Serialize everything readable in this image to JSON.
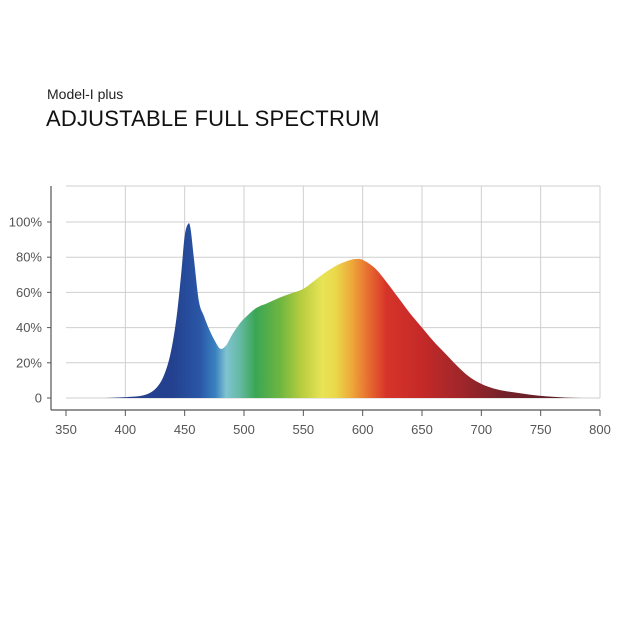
{
  "header": {
    "subtitle": "Model-I plus",
    "title": "ADJUSTABLE FULL SPECTRUM"
  },
  "chart_data": {
    "type": "area",
    "title": "ADJUSTABLE FULL SPECTRUM",
    "subtitle": "Model-I plus",
    "xlabel": "",
    "ylabel": "",
    "xlim": [
      350,
      800
    ],
    "ylim": [
      0,
      120
    ],
    "grid": true,
    "x_ticks": [
      350,
      400,
      450,
      500,
      550,
      600,
      650,
      700,
      750,
      800
    ],
    "y_ticks": [
      {
        "value": 0,
        "label": "0"
      },
      {
        "value": 20,
        "label": "20%"
      },
      {
        "value": 40,
        "label": "40%"
      },
      {
        "value": 60,
        "label": "60%"
      },
      {
        "value": 80,
        "label": "80%"
      },
      {
        "value": 100,
        "label": "100%"
      }
    ],
    "series": [
      {
        "x": [
          350,
          380,
          400,
          415,
          425,
          432,
          438,
          443,
          447,
          450,
          453,
          455,
          458,
          462,
          466,
          470,
          475,
          480,
          485,
          490,
          495,
          500,
          510,
          520,
          530,
          540,
          550,
          560,
          570,
          580,
          590,
          595,
          600,
          610,
          620,
          630,
          640,
          650,
          660,
          670,
          680,
          690,
          700,
          710,
          720,
          730,
          740,
          750,
          760,
          770,
          780,
          790,
          800
        ],
        "y": [
          0,
          0,
          0.5,
          1.5,
          5,
          12,
          25,
          45,
          70,
          92,
          99,
          96,
          78,
          55,
          47,
          40,
          33,
          28,
          30,
          36,
          41,
          45,
          51,
          54,
          57,
          59.5,
          62,
          67,
          72,
          76,
          78.5,
          79,
          78.5,
          74,
          66,
          57,
          48,
          40,
          32,
          25,
          18,
          12,
          8,
          5.5,
          4,
          3,
          2,
          1.2,
          0.7,
          0.3,
          0.1,
          0,
          0
        ]
      }
    ]
  }
}
